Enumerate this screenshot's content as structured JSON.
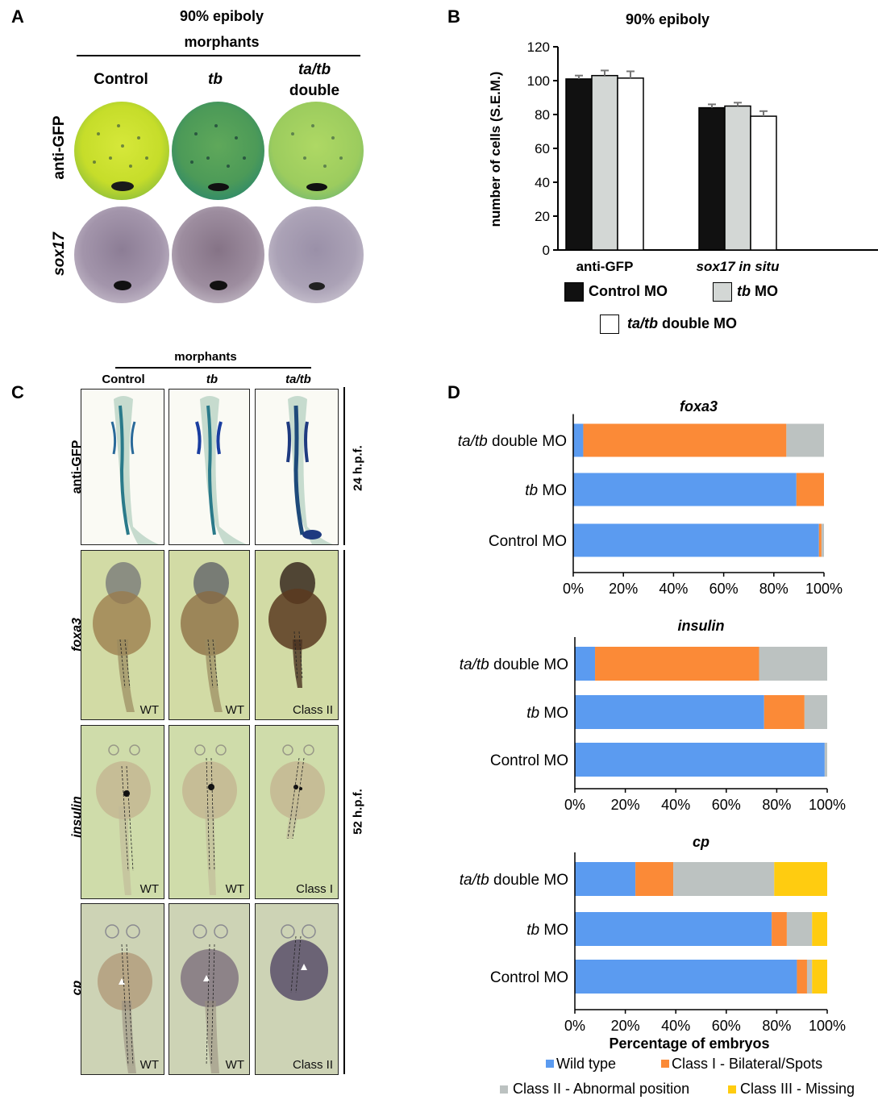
{
  "panelA": {
    "letter": "A",
    "title1": "90% epiboly",
    "title2": "morphants",
    "col1": "Control",
    "col2": "tb",
    "col3a": "ta/tb",
    "col3b": "double",
    "row1": "anti-GFP",
    "row2": "sox17"
  },
  "panelB": {
    "letter": "B",
    "legend": {
      "control": "Control MO",
      "tb_italic": "tb",
      "tb_rest": " MO",
      "double_italic": "ta/tb",
      "double_rest": " double MO"
    }
  },
  "panelC": {
    "letter": "C",
    "header": "morphants",
    "col1": "Control",
    "col2": "tb",
    "col3": "ta/tb",
    "rows": [
      "anti-GFP",
      "foxa3",
      "insulin",
      "cp"
    ],
    "time1": "24 h.p.f.",
    "time2": "52 h.p.f.",
    "classes": {
      "foxa3": [
        "WT",
        "WT",
        "Class II"
      ],
      "insulin": [
        "WT",
        "WT",
        "Class I"
      ],
      "cp": [
        "WT",
        "WT",
        "Class II"
      ]
    }
  },
  "panelD": {
    "letter": "D",
    "xlabel": "Percentage of embryos",
    "legend": [
      "Wild type",
      "Class I - Bilateral/Spots",
      "Class II - Abnormal position",
      "Class III - Missing"
    ]
  },
  "colors": {
    "wild_type": "#5b9bf0",
    "class1": "#fb8a37",
    "class2": "#bcc2c1",
    "class3": "#ffcc10",
    "control_bar": "#111111",
    "tb_bar": "#d3d7d5",
    "double_bar": "#ffffff"
  },
  "chart_data": [
    {
      "type": "bar",
      "title": "90% epiboly",
      "ylabel": "number of cells (S.E.M.)",
      "categories": [
        "anti-GFP",
        "sox17 in situ"
      ],
      "ylim": [
        0,
        120
      ],
      "yticks": [
        0,
        20,
        40,
        60,
        80,
        100,
        120
      ],
      "series": [
        {
          "name": "Control MO",
          "values": [
            101,
            84
          ],
          "errors": [
            2,
            2
          ]
        },
        {
          "name": "tb MO",
          "values": [
            103,
            85
          ],
          "errors": [
            3,
            2
          ]
        },
        {
          "name": "ta/tb double MO",
          "values": [
            101.5,
            79
          ],
          "errors": [
            4,
            3
          ]
        }
      ]
    },
    {
      "type": "bar",
      "orientation": "horizontal",
      "stacked": true,
      "title": "foxa3",
      "categories": [
        "ta/tb double MO",
        "tb MO",
        "Control MO"
      ],
      "xticks": [
        "0%",
        "20%",
        "40%",
        "60%",
        "80%",
        "100%"
      ],
      "series": [
        {
          "name": "Wild type",
          "values": [
            4,
            89,
            98
          ]
        },
        {
          "name": "Class I - Bilateral/Spots",
          "values": [
            81,
            11,
            1
          ]
        },
        {
          "name": "Class II - Abnormal position",
          "values": [
            15,
            0,
            1
          ]
        },
        {
          "name": "Class III - Missing",
          "values": [
            0,
            0,
            0
          ]
        }
      ]
    },
    {
      "type": "bar",
      "orientation": "horizontal",
      "stacked": true,
      "title": "insulin",
      "categories": [
        "ta/tb double MO",
        "tb MO",
        "Control MO"
      ],
      "xticks": [
        "0%",
        "20%",
        "40%",
        "60%",
        "80%",
        "100%"
      ],
      "series": [
        {
          "name": "Wild type",
          "values": [
            8,
            75,
            99
          ]
        },
        {
          "name": "Class I - Bilateral/Spots",
          "values": [
            65,
            16,
            0
          ]
        },
        {
          "name": "Class II - Abnormal position",
          "values": [
            27,
            9,
            1
          ]
        },
        {
          "name": "Class III - Missing",
          "values": [
            0,
            0,
            0
          ]
        }
      ]
    },
    {
      "type": "bar",
      "orientation": "horizontal",
      "stacked": true,
      "title": "cp",
      "xlabel": "Percentage of embryos",
      "categories": [
        "ta/tb double MO",
        "tb MO",
        "Control MO"
      ],
      "xticks": [
        "0%",
        "20%",
        "40%",
        "60%",
        "80%",
        "100%"
      ],
      "series": [
        {
          "name": "Wild type",
          "values": [
            24,
            78,
            88
          ]
        },
        {
          "name": "Class I - Bilateral/Spots",
          "values": [
            15,
            6,
            4
          ]
        },
        {
          "name": "Class II - Abnormal position",
          "values": [
            40,
            10,
            2
          ]
        },
        {
          "name": "Class III - Missing",
          "values": [
            21,
            6,
            6
          ]
        }
      ]
    }
  ]
}
